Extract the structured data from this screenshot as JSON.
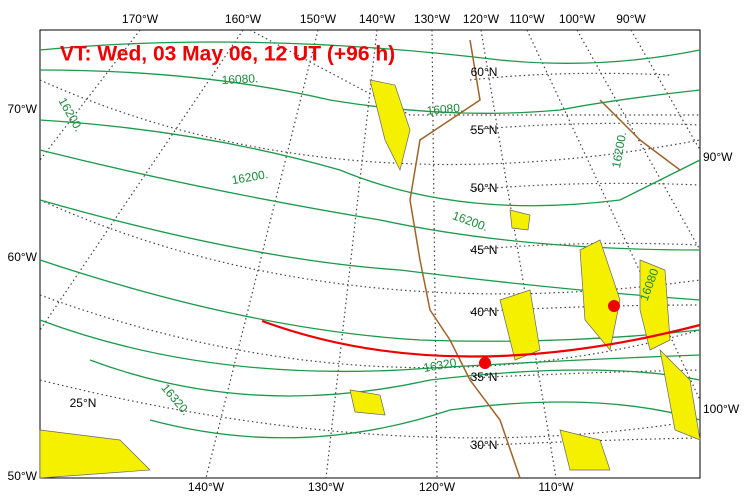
{
  "header": {
    "title": "VT:  Wed, 03 May 06, 12 UT (+96 h)"
  },
  "map": {
    "lon_labels_top": [
      "170°W",
      "160°W",
      "150°W",
      "140°W",
      "130°W",
      "120°W",
      "110°W",
      "100°W",
      "90°W"
    ],
    "lon_labels_left": [
      "70°W",
      "60°W",
      "50°W"
    ],
    "lon_labels_right": [
      "90°W",
      "100°W"
    ],
    "lon_labels_bottom": [
      "140°W",
      "130°W",
      "120°W",
      "110°W"
    ],
    "lat_labels": [
      "60°N",
      "55°N",
      "50°N",
      "45°N",
      "40°N",
      "35°N",
      "30°N",
      "25°N"
    ],
    "contour_labels": [
      "16080.",
      "16080.",
      "16200.",
      "16200.",
      "16200.",
      "16200.",
      "16080",
      "16320",
      "16320."
    ]
  }
}
